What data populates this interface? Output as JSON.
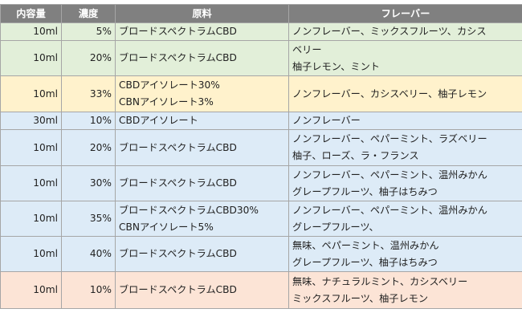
{
  "headers": [
    "内容量",
    "濃度",
    "原料",
    "フレーバー"
  ],
  "rows": [
    {
      "volume": "10ml",
      "concentration": "5%",
      "source": [
        "ブロードスペクトラムCBD"
      ],
      "flavors": [
        "ノンフレーバー、ミックスフルーツ、カシス"
      ],
      "band": "green"
    },
    {
      "volume": "10ml",
      "concentration": "20%",
      "source": [
        "ブロードスペクトラムCBD"
      ],
      "flavors": [
        "ベリー",
        "柚子レモン、ミント"
      ],
      "band": "green"
    },
    {
      "volume": "10ml",
      "concentration": "33%",
      "source": [
        "CBDアイソレート30%",
        "CBNアイソレート3%"
      ],
      "flavors": [
        "ノンフレーバー、カシスベリー、柚子レモン"
      ],
      "band": "yellow"
    },
    {
      "volume": "30ml",
      "concentration": "10%",
      "source": [
        "CBDアイソレート"
      ],
      "flavors": [
        "ノンフレーバー"
      ],
      "band": "blue"
    },
    {
      "volume": "10ml",
      "concentration": "20%",
      "source": [
        "ブロードスペクトラムCBD"
      ],
      "flavors": [
        "ノンフレーバー、ペパーミント、ラズベリー",
        "柚子、ローズ、ラ・フランス"
      ],
      "band": "blue"
    },
    {
      "volume": "10ml",
      "concentration": "30%",
      "source": [
        "ブロードスペクトラムCBD"
      ],
      "flavors": [
        "ノンフレーバー、ペパーミント、温州みかん",
        "グレープフルーツ、柚子はちみつ"
      ],
      "band": "blue"
    },
    {
      "volume": "10ml",
      "concentration": "35%",
      "source": [
        "ブロードスペクトラムCBD30%",
        "CBNアイソレート5%"
      ],
      "flavors": [
        "ノンフレーバー、ペパーミント、温州みかん",
        "グレープフルーツ、"
      ],
      "band": "blue"
    },
    {
      "volume": "10ml",
      "concentration": "40%",
      "source": [
        "ブロードスペクトラムCBD"
      ],
      "flavors": [
        "無味、ペパーミント、温州みかん",
        "グレープフルーツ、柚子はちみつ"
      ],
      "band": "blue"
    },
    {
      "volume": "10ml",
      "concentration": "10%",
      "source": [
        "ブロードスペクトラムCBD"
      ],
      "flavors": [
        "無味、ナチュラルミント、カシスベリー",
        "ミックスフルーツ、柚子レモン"
      ],
      "band": "pink"
    }
  ],
  "colors": {
    "header": "#808080",
    "green": "#e2efd9",
    "yellow": "#fff2cc",
    "blue": "#ddebf7",
    "pink": "#fce4d6"
  }
}
